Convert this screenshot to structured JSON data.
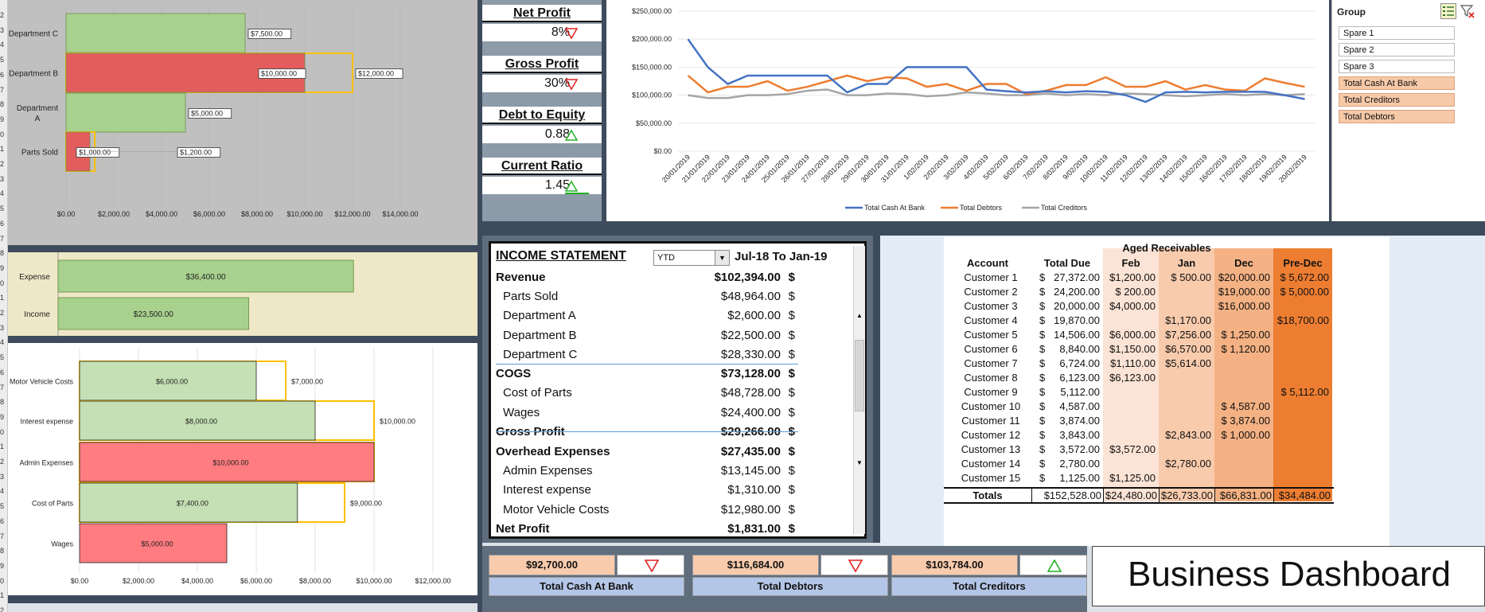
{
  "dept_chart": {
    "rows": [
      {
        "name": "Department C",
        "actual": 7500,
        "target": null,
        "actual_label": "$7,500.00",
        "target_label": "",
        "status": "green"
      },
      {
        "name": "Department B",
        "actual": 10000,
        "target": 12000,
        "actual_label": "$10,000.00",
        "target_label": "$12,000.00",
        "status": "red"
      },
      {
        "name": "Department A",
        "actual": 5000,
        "target": null,
        "actual_label": "$5,000.00",
        "target_label": "",
        "status": "green"
      },
      {
        "name": "Parts Sold",
        "actual": 1000,
        "target": 1200,
        "actual_label": "$1,000.00",
        "target_label": "$1,200.00",
        "status": "red"
      }
    ],
    "ticks": [
      "$0.00",
      "$2,000.00",
      "$4,000.00",
      "$6,000.00",
      "$8,000.00",
      "$10,000.00",
      "$12,000.00",
      "$14,000.00"
    ]
  },
  "ie_chart": {
    "rows": [
      {
        "name": "Expense",
        "value": 36400,
        "label": "$36,400.00"
      },
      {
        "name": "Income",
        "value": 23500,
        "label": "$23,500.00"
      }
    ]
  },
  "exp_chart": {
    "rows": [
      {
        "name": "Motor Vehicle Costs",
        "actual": 6000,
        "target": 7000,
        "actual_label": "$6,000.00",
        "target_label": "$7,000.00",
        "status": "green"
      },
      {
        "name": "Interest expense",
        "actual": 8000,
        "target": 10000,
        "actual_label": "$8,000.00",
        "target_label": "$10,000.00",
        "status": "green"
      },
      {
        "name": "Admin Expenses",
        "actual": 10000,
        "target": 10000,
        "actual_label": "$10,000.00",
        "target_label": "",
        "status": "red"
      },
      {
        "name": "Cost of Parts",
        "actual": 7400,
        "target": 9000,
        "actual_label": "$7,400.00",
        "target_label": "$9,000.00",
        "status": "green"
      },
      {
        "name": "Wages",
        "actual": 5000,
        "target": null,
        "actual_label": "$5,000.00",
        "target_label": "",
        "status": "red"
      }
    ],
    "ticks": [
      "$0.00",
      "$2,000.00",
      "$4,000.00",
      "$6,000.00",
      "$8,000.00",
      "$10,000.00",
      "$12,000.00"
    ]
  },
  "kpis": [
    {
      "title": "Net Profit",
      "value": "8%",
      "trend": "down"
    },
    {
      "title": "Gross Profit",
      "value": "30%",
      "trend": "down"
    },
    {
      "title": "Debt to Equity",
      "value": "0.88",
      "trend": "up"
    },
    {
      "title": "Current Ratio",
      "value": "1.45",
      "trend": "up"
    }
  ],
  "chart_data": {
    "type": "line",
    "x": [
      "20/01/2019",
      "21/01/2019",
      "22/01/2019",
      "23/01/2019",
      "24/01/2019",
      "25/01/2019",
      "26/01/2019",
      "27/01/2019",
      "28/01/2019",
      "29/01/2019",
      "30/01/2019",
      "31/01/2019",
      "1/02/2019",
      "2/02/2019",
      "3/02/2019",
      "4/02/2019",
      "5/02/2019",
      "6/02/2019",
      "7/02/2019",
      "8/02/2019",
      "9/02/2019",
      "10/02/2019",
      "11/02/2019",
      "12/02/2019",
      "13/02/2019",
      "14/02/2019",
      "15/02/2019",
      "16/02/2019",
      "17/02/2019",
      "18/02/2019",
      "19/02/2019",
      "20/02/2019"
    ],
    "series": [
      {
        "name": "Total Cash At Bank",
        "color": "#4472c4",
        "values": [
          200000,
          150000,
          120000,
          135000,
          135000,
          135000,
          135000,
          135000,
          105000,
          120000,
          120000,
          150000,
          150000,
          150000,
          150000,
          110000,
          107000,
          105000,
          107000,
          105000,
          107000,
          106000,
          100000,
          88000,
          105000,
          106000,
          105000,
          106000,
          106000,
          106000,
          100000,
          93000
        ]
      },
      {
        "name": "Total Debtors",
        "color": "#ed7d31",
        "values": [
          135000,
          105000,
          115000,
          115000,
          125000,
          108000,
          115000,
          125000,
          135000,
          125000,
          132000,
          130000,
          115000,
          120000,
          108000,
          120000,
          120000,
          102000,
          108000,
          118000,
          118000,
          132000,
          115000,
          115000,
          125000,
          110000,
          118000,
          110000,
          108000,
          130000,
          122000,
          115000
        ]
      },
      {
        "name": "Total Creditors",
        "color": "#a5a5a5",
        "values": [
          100000,
          95000,
          95000,
          100000,
          100000,
          102000,
          108000,
          110000,
          100000,
          100000,
          103000,
          102000,
          98000,
          100000,
          105000,
          103000,
          100000,
          100000,
          103000,
          100000,
          102000,
          100000,
          103000,
          102000,
          100000,
          98000,
          100000,
          102000,
          100000,
          102000,
          100000,
          102000
        ]
      }
    ],
    "yticks": [
      "$250,000.00",
      "$200,000.00",
      "$150,000.00",
      "$100,000.00",
      "$50,000.00",
      "$0.00"
    ],
    "ylim": [
      0,
      250000
    ]
  },
  "slicer": {
    "title": "Group",
    "items": [
      {
        "label": "Spare 1",
        "selected": false
      },
      {
        "label": "Spare 2",
        "selected": false
      },
      {
        "label": "Spare 3",
        "selected": false
      },
      {
        "label": "Total Cash At Bank",
        "selected": true
      },
      {
        "label": "Total Creditors",
        "selected": true
      },
      {
        "label": "Total Debtors",
        "selected": true
      }
    ]
  },
  "income_statement": {
    "title": "INCOME STATEMENT",
    "period_select": "YTD",
    "period_range": "Jul-18 To Jan-19",
    "rows": [
      {
        "name": "Revenue",
        "value": "$102,394.00",
        "bold": true,
        "indent": false
      },
      {
        "name": "Parts Sold",
        "value": "$48,964.00",
        "bold": false,
        "indent": true
      },
      {
        "name": "Department A",
        "value": "$2,600.00",
        "bold": false,
        "indent": true
      },
      {
        "name": "Department B",
        "value": "$22,500.00",
        "bold": false,
        "indent": true
      },
      {
        "name": "Department C",
        "value": "$28,330.00",
        "bold": false,
        "indent": true
      },
      {
        "name": "COGS",
        "value": "$73,128.00",
        "bold": true,
        "indent": false
      },
      {
        "name": "Cost of Parts",
        "value": "$48,728.00",
        "bold": false,
        "indent": true
      },
      {
        "name": "Wages",
        "value": "$24,400.00",
        "bold": false,
        "indent": true
      },
      {
        "name": "Gross Profit",
        "value": "$29,266.00",
        "bold": true,
        "indent": false
      },
      {
        "name": "Overhead Expenses",
        "value": "$27,435.00",
        "bold": true,
        "indent": false
      },
      {
        "name": "Admin Expenses",
        "value": "$13,145.00",
        "bold": false,
        "indent": true
      },
      {
        "name": "Interest expense",
        "value": "$1,310.00",
        "bold": false,
        "indent": true
      },
      {
        "name": "Motor Vehicle Costs",
        "value": "$12,980.00",
        "bold": false,
        "indent": true
      },
      {
        "name": "Net Profit",
        "value": "$1,831.00",
        "bold": true,
        "indent": false
      }
    ],
    "currency": "$"
  },
  "aged_receivables": {
    "title": "Aged Receivables",
    "headers": [
      "Account",
      "Total Due",
      "Feb",
      "Jan",
      "Dec",
      "Pre-Dec"
    ],
    "rows": [
      [
        "Customer 1",
        "27,372.00",
        "$1,200.00",
        "$    500.00",
        "$20,000.00",
        "$  5,672.00"
      ],
      [
        "Customer 2",
        "24,200.00",
        "$    200.00",
        "",
        "$19,000.00",
        "$  5,000.00"
      ],
      [
        "Customer 3",
        "20,000.00",
        "$4,000.00",
        "",
        "$16,000.00",
        ""
      ],
      [
        "Customer 4",
        "19,870.00",
        "",
        "$1,170.00",
        "",
        "$18,700.00"
      ],
      [
        "Customer 5",
        "14,506.00",
        "$6,000.00",
        "$7,256.00",
        "$  1,250.00",
        ""
      ],
      [
        "Customer 6",
        "8,840.00",
        "$1,150.00",
        "$6,570.00",
        "$  1,120.00",
        ""
      ],
      [
        "Customer 7",
        "6,724.00",
        "$1,110.00",
        "$5,614.00",
        "",
        ""
      ],
      [
        "Customer 8",
        "6,123.00",
        "$6,123.00",
        "",
        "",
        ""
      ],
      [
        "Customer 9",
        "5,112.00",
        "",
        "",
        "",
        "$  5,112.00"
      ],
      [
        "Customer 10",
        "4,587.00",
        "",
        "",
        "$  4,587.00",
        ""
      ],
      [
        "Customer 11",
        "3,874.00",
        "",
        "",
        "$  3,874.00",
        ""
      ],
      [
        "Customer 12",
        "3,843.00",
        "",
        "$2,843.00",
        "$  1,000.00",
        ""
      ],
      [
        "Customer 13",
        "3,572.00",
        "$3,572.00",
        "",
        "",
        ""
      ],
      [
        "Customer 14",
        "2,780.00",
        "",
        "$2,780.00",
        "",
        ""
      ],
      [
        "Customer 15",
        "1,125.00",
        "$1,125.00",
        "",
        "",
        ""
      ]
    ],
    "totals": [
      "Totals",
      "$152,528.00",
      "$24,480.00",
      "$26,733.00",
      "$66,831.00",
      "$34,484.00"
    ],
    "col_colors": [
      "#ffffff",
      "#ffffff",
      "#fbe3d5",
      "#f8cbad",
      "#f4b183",
      "#ed7d31"
    ]
  },
  "summary": [
    {
      "value": "$92,700.00",
      "label": "Total Cash At Bank",
      "trend": "down"
    },
    {
      "value": "$116,684.00",
      "label": "Total Debtors",
      "trend": "down"
    },
    {
      "value": "$103,784.00",
      "label": "Total Creditors",
      "trend": "up"
    }
  ],
  "dashboard_title": "Business Dashboard",
  "row_numbers": [
    "2",
    "3",
    "4",
    "5",
    "6",
    "7",
    "8",
    "9",
    "0",
    "1",
    "2",
    "3",
    "4",
    "5",
    "6",
    "7",
    "8",
    "9",
    "0",
    "1",
    "2",
    "3",
    "4",
    "5",
    "6",
    "7",
    "8",
    "9",
    "0",
    "1",
    "2",
    "3",
    "4",
    "5",
    "6",
    "7",
    "8",
    "9",
    "0",
    "1",
    "2"
  ]
}
